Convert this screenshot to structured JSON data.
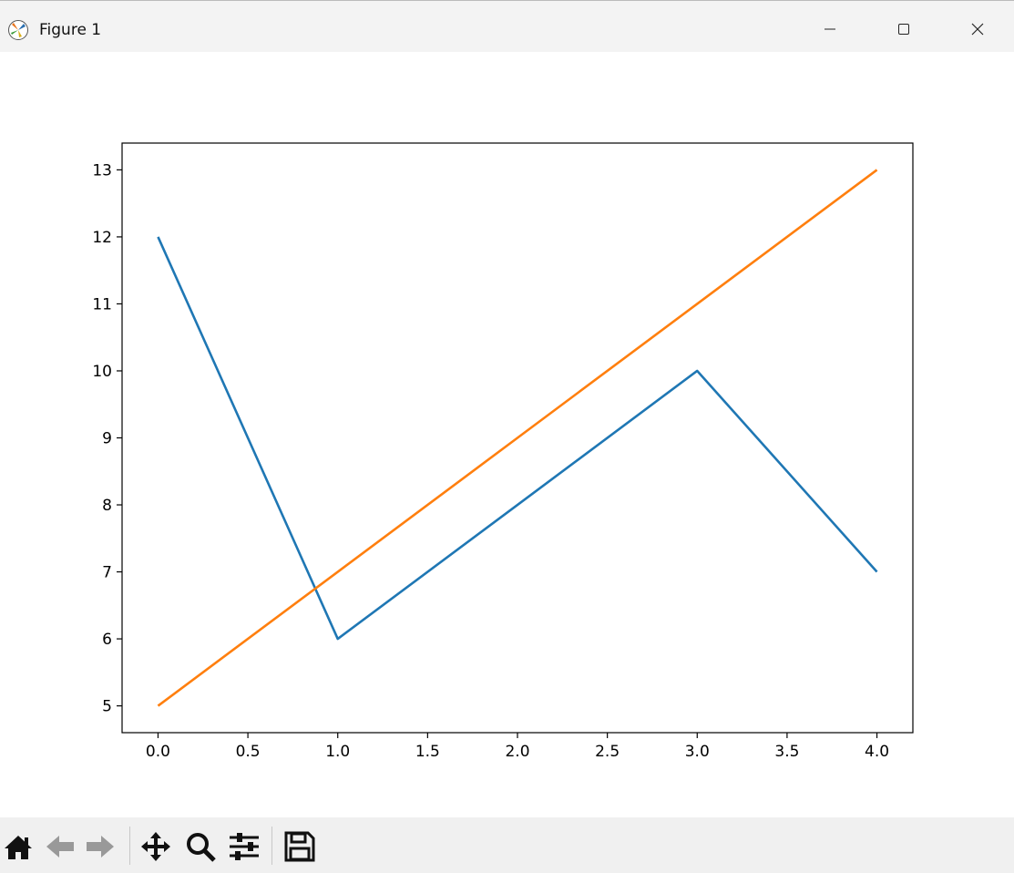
{
  "window": {
    "title": "Figure 1"
  },
  "toolbar": {
    "buttons": [
      "home",
      "back",
      "forward",
      "pan",
      "zoom",
      "configure-subplots",
      "save"
    ]
  },
  "chart_data": {
    "type": "line",
    "title": "",
    "xlabel": "",
    "ylabel": "",
    "xlim": [
      -0.2,
      4.2
    ],
    "ylim": [
      4.6,
      13.4
    ],
    "xticks": [
      0.0,
      0.5,
      1.0,
      1.5,
      2.0,
      2.5,
      3.0,
      3.5,
      4.0
    ],
    "xtick_labels": [
      "0.0",
      "0.5",
      "1.0",
      "1.5",
      "2.0",
      "2.5",
      "3.0",
      "3.5",
      "4.0"
    ],
    "yticks": [
      5,
      6,
      7,
      8,
      9,
      10,
      11,
      12,
      13
    ],
    "ytick_labels": [
      "5",
      "6",
      "7",
      "8",
      "9",
      "10",
      "11",
      "12",
      "13"
    ],
    "grid": false,
    "x": [
      0,
      1,
      2,
      3,
      4
    ],
    "series": [
      {
        "values": [
          12,
          6,
          8,
          10,
          7
        ],
        "color": "#1f77b4"
      },
      {
        "values": [
          5,
          7,
          9,
          11,
          13
        ],
        "color": "#ff7f0e"
      }
    ]
  }
}
